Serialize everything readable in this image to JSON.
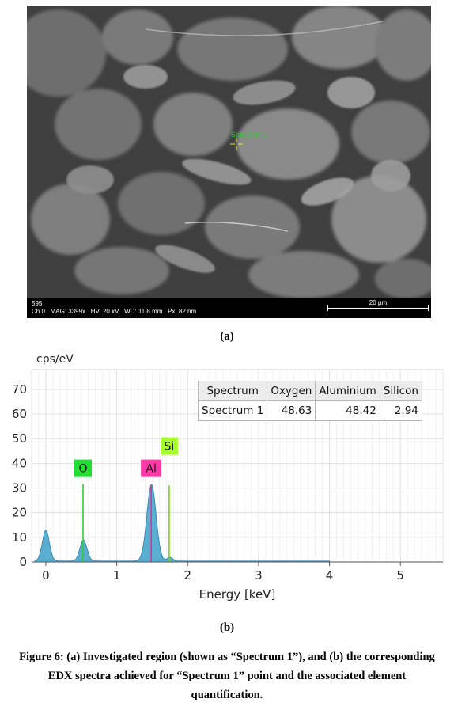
{
  "sem": {
    "image_number": "595",
    "channel": "Ch 0",
    "mag": "MAG: 3399x",
    "hv": "HV: 20 kV",
    "wd": "WD: 11.8 mm",
    "px": "Px: 82 nm",
    "scale_bar": "20 µm",
    "marker_label": "Spectrum 1"
  },
  "captions": {
    "a": "(a)",
    "b": "(b)"
  },
  "table": {
    "headers": [
      "Spectrum",
      "Oxygen",
      "Aluminium",
      "Silicon"
    ],
    "row": [
      "Spectrum 1",
      "48.63",
      "48.42",
      "2.94"
    ]
  },
  "figure_caption": "Figure 6: (a) Investigated region (shown as “Spectrum 1”), and (b) the corresponding EDX spectra achieved for “Spectrum 1” point and the associated element quantification.",
  "chart_data": {
    "type": "area",
    "ylabel": "cps/eV",
    "xlabel": "Energy [keV]",
    "xlim": [
      -0.2,
      5.6
    ],
    "ylim": [
      0,
      78
    ],
    "x_ticks": [
      0,
      1,
      2,
      3,
      4,
      5
    ],
    "y_ticks": [
      0,
      10,
      20,
      30,
      40,
      50,
      60,
      70
    ],
    "grid": true,
    "peaks": [
      {
        "center": 0.0,
        "height": 12.5,
        "sigma": 0.05
      },
      {
        "center": 0.53,
        "height": 8.5,
        "sigma": 0.05
      },
      {
        "center": 1.49,
        "height": 31.0,
        "sigma": 0.065
      },
      {
        "center": 1.75,
        "height": 1.5,
        "sigma": 0.04
      }
    ],
    "baseline": 0.4,
    "spectrum_end": 4.0,
    "element_markers": [
      {
        "label": "O",
        "energy": 0.525,
        "height": 31.5,
        "label_color": "#22dd33",
        "line_color": "#33cc33"
      },
      {
        "label": "Al",
        "energy": 1.486,
        "height": 31.0,
        "label_color": "#ff3aa6",
        "line_color": "#e0309a"
      },
      {
        "label": "Si",
        "energy": 1.74,
        "height": 31.0,
        "label_color": "#a6ff2a",
        "line_color": "#77d611"
      }
    ],
    "fill_color": "#5aaed0"
  }
}
